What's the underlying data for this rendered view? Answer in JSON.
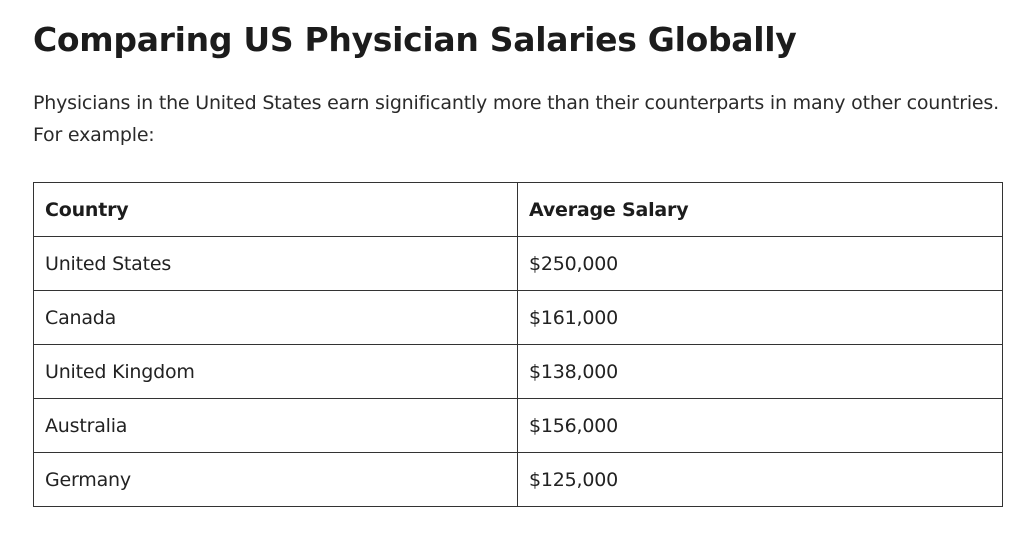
{
  "article": {
    "title": "Comparing US Physician Salaries Globally",
    "intro": "Physicians in the United States earn significantly more than their counterparts in many other countries. For example:"
  },
  "table": {
    "headers": [
      "Country",
      "Average Salary"
    ],
    "rows": [
      [
        "United States",
        "$250,000"
      ],
      [
        "Canada",
        "$161,000"
      ],
      [
        "United Kingdom",
        "$138,000"
      ],
      [
        "Australia",
        "$156,000"
      ],
      [
        "Germany",
        "$125,000"
      ]
    ]
  }
}
